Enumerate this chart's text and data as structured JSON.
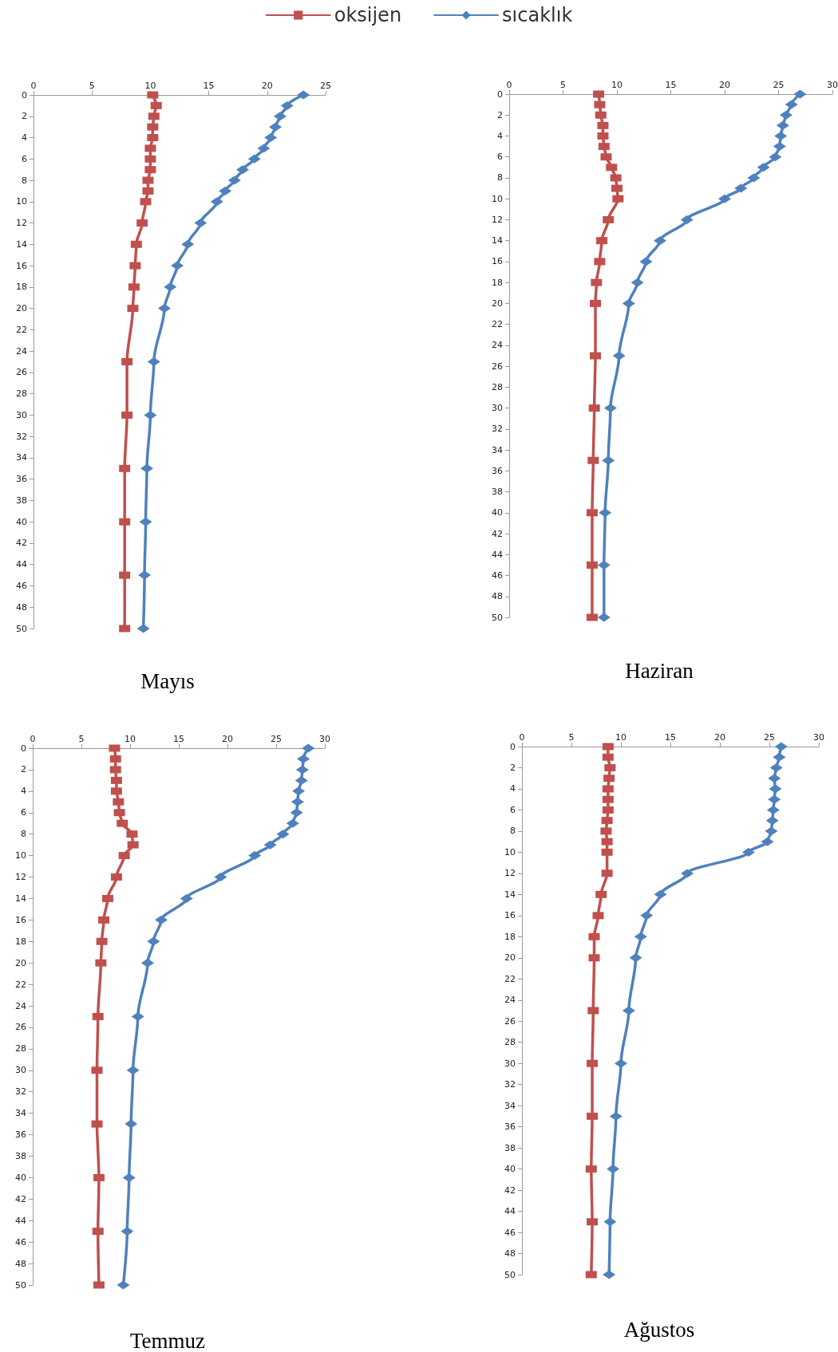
{
  "chart_data": [
    {
      "type": "line",
      "title": "Mayıs",
      "xlim": [
        0,
        25
      ],
      "xticks": [
        0,
        5,
        10,
        15,
        20,
        25
      ],
      "ylim": [
        50,
        0
      ],
      "yticks": [
        0,
        2,
        4,
        6,
        8,
        10,
        12,
        14,
        16,
        18,
        20,
        22,
        24,
        26,
        28,
        30,
        32,
        34,
        36,
        38,
        40,
        42,
        44,
        46,
        48,
        50
      ],
      "grid": false,
      "legend": "top",
      "line_style": "solid",
      "series": [
        {
          "name": "oksijen",
          "color": "#c0504d",
          "marker": "square",
          "x": [
            10.2,
            10.5,
            10.3,
            10.2,
            10.2,
            10.0,
            10.0,
            10.0,
            9.8,
            9.8,
            9.6,
            9.3,
            8.8,
            8.7,
            8.6,
            8.5,
            8.0,
            8.0,
            7.8,
            7.8,
            7.8,
            7.8
          ],
          "values": [
            0,
            1,
            2,
            3,
            4,
            5,
            6,
            7,
            8,
            9,
            10,
            12,
            14,
            16,
            18,
            20,
            25,
            30,
            35,
            40,
            45,
            50
          ]
        },
        {
          "name": "sıcaklık",
          "color": "#4f81bd",
          "marker": "diamond",
          "x": [
            23.1,
            21.7,
            21.1,
            20.7,
            20.3,
            19.7,
            18.9,
            17.9,
            17.2,
            16.4,
            15.7,
            14.3,
            13.2,
            12.3,
            11.7,
            11.2,
            10.3,
            10.0,
            9.7,
            9.6,
            9.5,
            9.4
          ],
          "values": [
            0,
            1,
            2,
            3,
            4,
            5,
            6,
            7,
            8,
            9,
            10,
            12,
            14,
            16,
            18,
            20,
            25,
            30,
            35,
            40,
            45,
            50
          ]
        }
      ]
    },
    {
      "type": "line",
      "title": "Haziran",
      "xlim": [
        0,
        30
      ],
      "xticks": [
        0,
        5,
        10,
        15,
        20,
        25,
        30
      ],
      "ylim": [
        50,
        0
      ],
      "yticks": [
        0,
        2,
        4,
        6,
        8,
        10,
        12,
        14,
        16,
        18,
        20,
        22,
        24,
        26,
        28,
        30,
        32,
        34,
        36,
        38,
        40,
        42,
        44,
        46,
        48,
        50
      ],
      "grid": false,
      "line_style": "solid",
      "series": [
        {
          "color": "#c0504d",
          "marker": "square",
          "x": [
            8.3,
            8.4,
            8.5,
            8.7,
            8.7,
            8.8,
            9.0,
            9.5,
            9.9,
            10.0,
            10.1,
            9.2,
            8.6,
            8.4,
            8.1,
            8.0,
            8.0,
            7.9,
            7.8,
            7.7,
            7.7,
            7.7
          ],
          "values": [
            0,
            1,
            2,
            3,
            4,
            5,
            6,
            7,
            8,
            9,
            10,
            12,
            14,
            16,
            18,
            20,
            25,
            30,
            35,
            40,
            45,
            50
          ]
        },
        {
          "color": "#4f81bd",
          "marker": "diamond",
          "x": [
            27.0,
            26.2,
            25.7,
            25.4,
            25.2,
            25.1,
            24.7,
            23.6,
            22.7,
            21.5,
            20.0,
            16.5,
            14.0,
            12.7,
            11.9,
            11.1,
            10.2,
            9.4,
            9.2,
            8.9,
            8.8,
            8.8
          ],
          "values": [
            0,
            1,
            2,
            3,
            4,
            5,
            6,
            7,
            8,
            9,
            10,
            12,
            14,
            16,
            18,
            20,
            25,
            30,
            35,
            40,
            45,
            50
          ]
        }
      ]
    },
    {
      "type": "line",
      "title": "Temmuz",
      "xlim": [
        0,
        30
      ],
      "xticks": [
        0,
        5,
        10,
        15,
        20,
        25,
        30
      ],
      "ylim": [
        50,
        0
      ],
      "yticks": [
        0,
        2,
        4,
        6,
        8,
        10,
        12,
        14,
        16,
        18,
        20,
        22,
        24,
        26,
        28,
        30,
        32,
        34,
        36,
        38,
        40,
        42,
        44,
        46,
        48,
        50
      ],
      "grid": false,
      "line_style": "solid",
      "series": [
        {
          "color": "#c0504d",
          "marker": "square",
          "x": [
            8.4,
            8.5,
            8.5,
            8.6,
            8.6,
            8.8,
            8.9,
            9.2,
            10.2,
            10.3,
            9.4,
            8.6,
            7.7,
            7.3,
            7.1,
            7.0,
            6.7,
            6.6,
            6.6,
            6.8,
            6.7,
            6.8
          ],
          "values": [
            0,
            1,
            2,
            3,
            4,
            5,
            6,
            7,
            8,
            9,
            10,
            12,
            14,
            16,
            18,
            20,
            25,
            30,
            35,
            40,
            45,
            50
          ]
        },
        {
          "color": "#4f81bd",
          "marker": "diamond",
          "x": [
            28.3,
            27.8,
            27.7,
            27.6,
            27.3,
            27.2,
            27.1,
            26.7,
            25.7,
            24.4,
            22.8,
            19.3,
            15.8,
            13.2,
            12.4,
            11.8,
            10.8,
            10.3,
            10.1,
            9.9,
            9.7,
            9.3
          ],
          "values": [
            0,
            1,
            2,
            3,
            4,
            5,
            6,
            7,
            8,
            9,
            10,
            12,
            14,
            16,
            18,
            20,
            25,
            30,
            35,
            40,
            45,
            50
          ]
        }
      ]
    },
    {
      "type": "line",
      "title": "Ağustos",
      "xlim": [
        0,
        30
      ],
      "xticks": [
        0,
        5,
        10,
        15,
        20,
        25,
        30
      ],
      "ylim": [
        50,
        0
      ],
      "yticks": [
        0,
        2,
        4,
        6,
        8,
        10,
        12,
        14,
        16,
        18,
        20,
        22,
        24,
        26,
        28,
        30,
        32,
        34,
        36,
        38,
        40,
        42,
        44,
        46,
        48,
        50
      ],
      "grid": false,
      "line_style": "solid",
      "series": [
        {
          "color": "#c0504d",
          "marker": "square",
          "x": [
            8.7,
            8.7,
            8.9,
            8.8,
            8.7,
            8.7,
            8.7,
            8.6,
            8.5,
            8.6,
            8.6,
            8.6,
            8.0,
            7.7,
            7.3,
            7.3,
            7.2,
            7.1,
            7.1,
            7.0,
            7.1,
            7.0
          ],
          "values": [
            0,
            1,
            2,
            3,
            4,
            5,
            6,
            7,
            8,
            9,
            10,
            12,
            14,
            16,
            18,
            20,
            25,
            30,
            35,
            40,
            45,
            50
          ]
        },
        {
          "color": "#4f81bd",
          "marker": "diamond",
          "x": [
            26.2,
            26.0,
            25.7,
            25.5,
            25.6,
            25.5,
            25.4,
            25.3,
            25.2,
            24.8,
            22.9,
            16.7,
            14.0,
            12.6,
            12.0,
            11.5,
            10.8,
            10.0,
            9.5,
            9.2,
            8.9,
            8.8
          ],
          "values": [
            0,
            1,
            2,
            3,
            4,
            5,
            6,
            7,
            8,
            9,
            10,
            12,
            14,
            16,
            18,
            20,
            25,
            30,
            35,
            40,
            45,
            50
          ]
        }
      ]
    }
  ]
}
